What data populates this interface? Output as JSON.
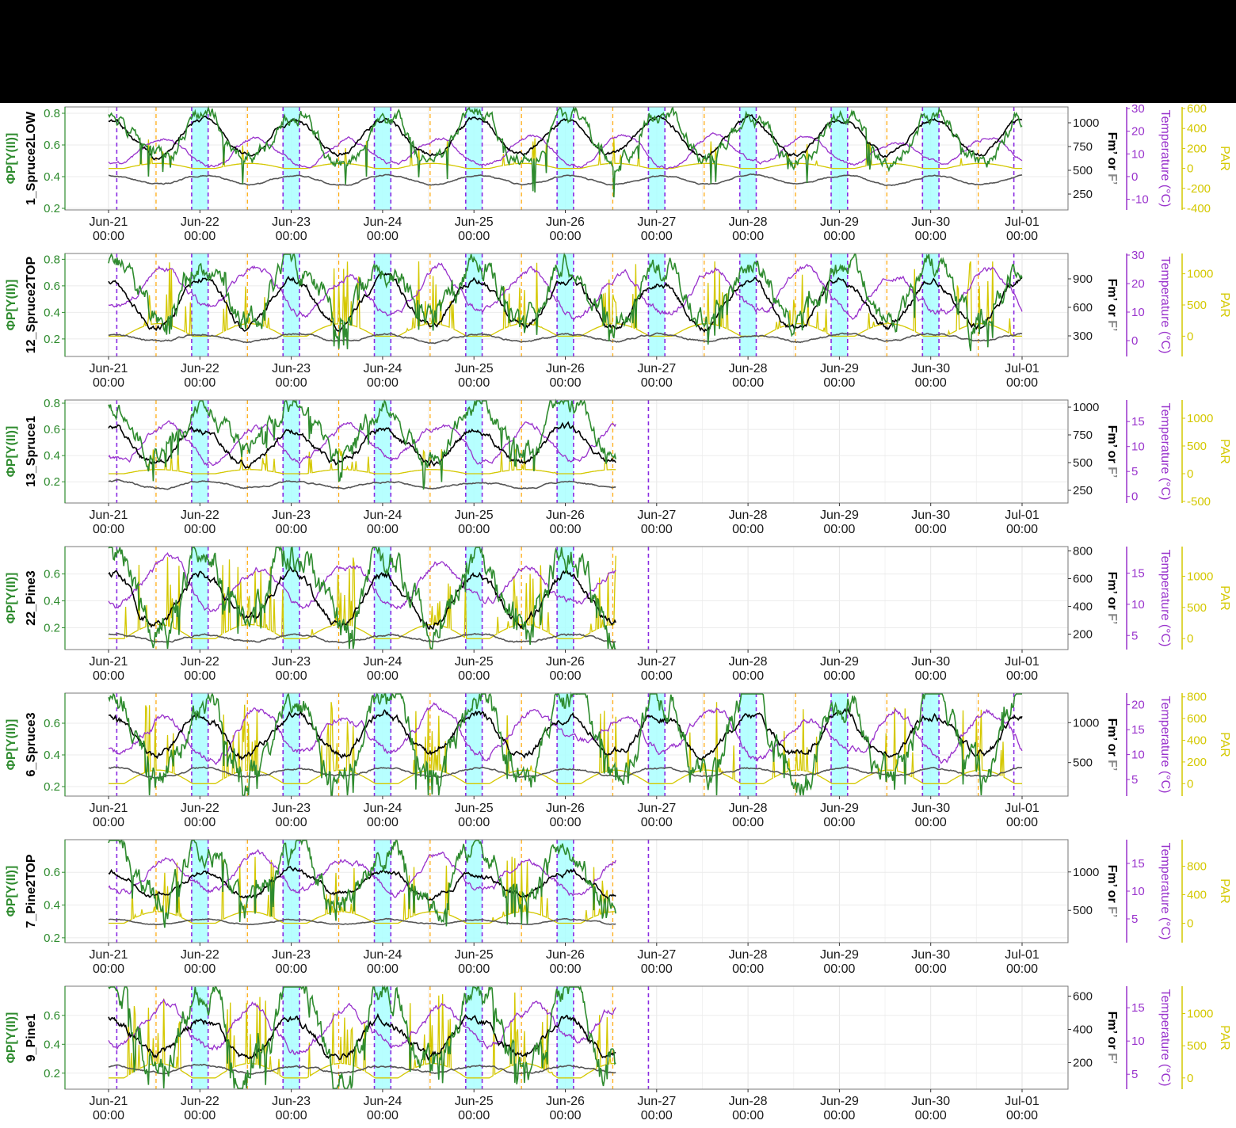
{
  "figure": {
    "header_color": "#000000",
    "x_labels": [
      "Jun-21\n00:00",
      "Jun-22\n00:00",
      "Jun-23\n00:00",
      "Jun-24\n00:00",
      "Jun-25\n00:00",
      "Jun-26\n00:00",
      "Jun-27\n00:00",
      "Jun-28\n00:00",
      "Jun-29\n00:00",
      "Jun-30\n00:00",
      "Jul-01\n00:00"
    ],
    "colors": {
      "phi": "#2e8b2e",
      "fm": "#000000",
      "f": "#555555",
      "temperature": "#9932cc",
      "par": "#d4c800",
      "night_shade": "#aaffff",
      "sunset_line": "#ffa500",
      "sunrise_line": "#8a2be2"
    },
    "axis_titles": {
      "phi": "ΦP[Y(II)]",
      "fm_part1": "Fm’",
      "fm_part2": "or",
      "fm_part3": "F’",
      "temperature": "Temperature (°C)",
      "par": "PAR"
    }
  },
  "chart_data": [
    {
      "type": "line",
      "panel": "1_Spruce2LOW",
      "data_end_day": 10.0,
      "phi_ticks": [
        "0.2",
        "0.4",
        "0.6",
        "0.8"
      ],
      "phi_range": [
        0.2,
        0.82
      ],
      "fm_ticks": [
        "250",
        "500",
        "750",
        "1000"
      ],
      "fm_range": [
        100,
        1150
      ],
      "temp_ticks": [
        "-10",
        "0",
        "10",
        "20",
        "30"
      ],
      "temp_range": [
        -14,
        30
      ],
      "par_ticks": [
        "-400",
        "-200",
        "0",
        "200",
        "400",
        "600"
      ],
      "par_range": [
        -400,
        600
      ],
      "series": {
        "phi": {
          "day_peak": 0.78,
          "noon_trough": 0.5,
          "noise": 0.03
        },
        "fm": {
          "base": 850,
          "amp": 180,
          "noise": 40
        },
        "f": {
          "base": 400,
          "amp": 80,
          "noise": 15
        },
        "temperature": {
          "base": 5,
          "amp": 12,
          "noise": 2
        },
        "par": {
          "base": 0,
          "peak": 200,
          "spiky": 0.15
        }
      }
    },
    {
      "type": "line",
      "panel": "12_Spruce2TOP",
      "data_end_day": 10.0,
      "phi_ticks": [
        "0.2",
        "0.4",
        "0.6",
        "0.8"
      ],
      "phi_range": [
        0.08,
        0.82
      ],
      "fm_ticks": [
        "300",
        "600",
        "900"
      ],
      "fm_range": [
        100,
        1150
      ],
      "temp_ticks": [
        "0",
        "10",
        "20",
        "30"
      ],
      "temp_range": [
        -5,
        30
      ],
      "par_ticks": [
        "0",
        "500",
        "1000"
      ],
      "par_range": [
        -300,
        1300
      ],
      "series": {
        "phi": {
          "day_peak": 0.74,
          "noon_trough": 0.35,
          "noise": 0.06
        },
        "fm": {
          "base": 650,
          "amp": 250,
          "noise": 60
        },
        "f": {
          "base": 280,
          "amp": 60,
          "noise": 20
        },
        "temperature": {
          "base": 10,
          "amp": 14,
          "noise": 3
        },
        "par": {
          "base": 0,
          "peak": 800,
          "spiky": 0.35
        }
      }
    },
    {
      "type": "line",
      "panel": "13_Spruce1",
      "data_end_day": 5.55,
      "phi_ticks": [
        "0.2",
        "0.4",
        "0.6",
        "0.8"
      ],
      "phi_range": [
        0.05,
        0.8
      ],
      "fm_ticks": [
        "250",
        "500",
        "750",
        "1000"
      ],
      "fm_range": [
        150,
        1050
      ],
      "temp_ticks": [
        "0",
        "5",
        "10",
        "15"
      ],
      "temp_range": [
        -1,
        19
      ],
      "par_ticks": [
        "-500",
        "0",
        "500",
        "1000"
      ],
      "par_range": [
        -500,
        1300
      ],
      "series": {
        "phi": {
          "day_peak": 0.76,
          "noon_trough": 0.42,
          "noise": 0.05
        },
        "fm": {
          "base": 650,
          "amp": 150,
          "noise": 50
        },
        "f": {
          "base": 300,
          "amp": 50,
          "noise": 15
        },
        "temperature": {
          "base": 7,
          "amp": 7,
          "noise": 1.5
        },
        "par": {
          "base": 0,
          "peak": 300,
          "spiky": 0.3
        }
      }
    },
    {
      "type": "line",
      "panel": "22_Pine3",
      "data_end_day": 5.55,
      "phi_ticks": [
        "0.2",
        "0.4",
        "0.6"
      ],
      "phi_range": [
        0.05,
        0.78
      ],
      "fm_ticks": [
        "200",
        "400",
        "600",
        "800"
      ],
      "fm_range": [
        100,
        820
      ],
      "temp_ticks": [
        "5",
        "10",
        "15"
      ],
      "temp_range": [
        3,
        19
      ],
      "par_ticks": [
        "0",
        "500",
        "1000"
      ],
      "par_range": [
        -150,
        1450
      ],
      "series": {
        "phi": {
          "day_peak": 0.74,
          "noon_trough": 0.2,
          "noise": 0.08
        },
        "fm": {
          "base": 450,
          "amp": 180,
          "noise": 50
        },
        "f": {
          "base": 170,
          "amp": 40,
          "noise": 15
        },
        "temperature": {
          "base": 10,
          "amp": 6,
          "noise": 1.5
        },
        "par": {
          "base": 0,
          "peak": 900,
          "spiky": 0.5
        }
      }
    },
    {
      "type": "line",
      "panel": "6_Spruce3",
      "data_end_day": 10.0,
      "phi_ticks": [
        "0.2",
        "0.4",
        "0.6"
      ],
      "phi_range": [
        0.15,
        0.77
      ],
      "fm_ticks": [
        "500",
        "1000"
      ],
      "fm_range": [
        100,
        1350
      ],
      "temp_ticks": [
        "5",
        "10",
        "15",
        "20"
      ],
      "temp_range": [
        2,
        22
      ],
      "par_ticks": [
        "0",
        "200",
        "400",
        "600",
        "800"
      ],
      "par_range": [
        -100,
        820
      ],
      "series": {
        "phi": {
          "day_peak": 0.72,
          "noon_trough": 0.28,
          "noise": 0.06
        },
        "fm": {
          "base": 850,
          "amp": 250,
          "noise": 80
        },
        "f": {
          "base": 380,
          "amp": 90,
          "noise": 25
        },
        "temperature": {
          "base": 10,
          "amp": 8,
          "noise": 2
        },
        "par": {
          "base": 0,
          "peak": 500,
          "spiky": 0.35
        }
      }
    },
    {
      "type": "line",
      "panel": "7_Pine2TOP",
      "data_end_day": 5.55,
      "phi_ticks": [
        "0.2",
        "0.4",
        "0.6"
      ],
      "phi_range": [
        0.18,
        0.78
      ],
      "fm_ticks": [
        "500",
        "1000"
      ],
      "fm_range": [
        100,
        1400
      ],
      "temp_ticks": [
        "5",
        "10",
        "15"
      ],
      "temp_range": [
        1,
        19
      ],
      "par_ticks": [
        "0",
        "400",
        "800"
      ],
      "par_range": [
        -250,
        1150
      ],
      "series": {
        "phi": {
          "day_peak": 0.74,
          "noon_trough": 0.4,
          "noise": 0.05
        },
        "fm": {
          "base": 850,
          "amp": 150,
          "noise": 60
        },
        "f": {
          "base": 350,
          "amp": 50,
          "noise": 15
        },
        "temperature": {
          "base": 10,
          "amp": 6,
          "noise": 1.5
        },
        "par": {
          "base": 0,
          "peak": 650,
          "spiky": 0.45
        }
      }
    },
    {
      "type": "line",
      "panel": "9_Pine1",
      "data_end_day": 5.55,
      "phi_ticks": [
        "0.2",
        "0.4",
        "0.6"
      ],
      "phi_range": [
        0.1,
        0.78
      ],
      "fm_ticks": [
        "200",
        "400",
        "600"
      ],
      "fm_range": [
        50,
        650
      ],
      "temp_ticks": [
        "5",
        "10",
        "15"
      ],
      "temp_range": [
        3,
        18
      ],
      "par_ticks": [
        "0",
        "500",
        "1000"
      ],
      "par_range": [
        -150,
        1400
      ],
      "series": {
        "phi": {
          "day_peak": 0.74,
          "noon_trough": 0.22,
          "noise": 0.07
        },
        "fm": {
          "base": 350,
          "amp": 110,
          "noise": 40
        },
        "f": {
          "base": 160,
          "amp": 30,
          "noise": 12
        },
        "temperature": {
          "base": 9,
          "amp": 6,
          "noise": 1.5
        },
        "par": {
          "base": 0,
          "peak": 900,
          "spiky": 0.5
        }
      }
    }
  ]
}
